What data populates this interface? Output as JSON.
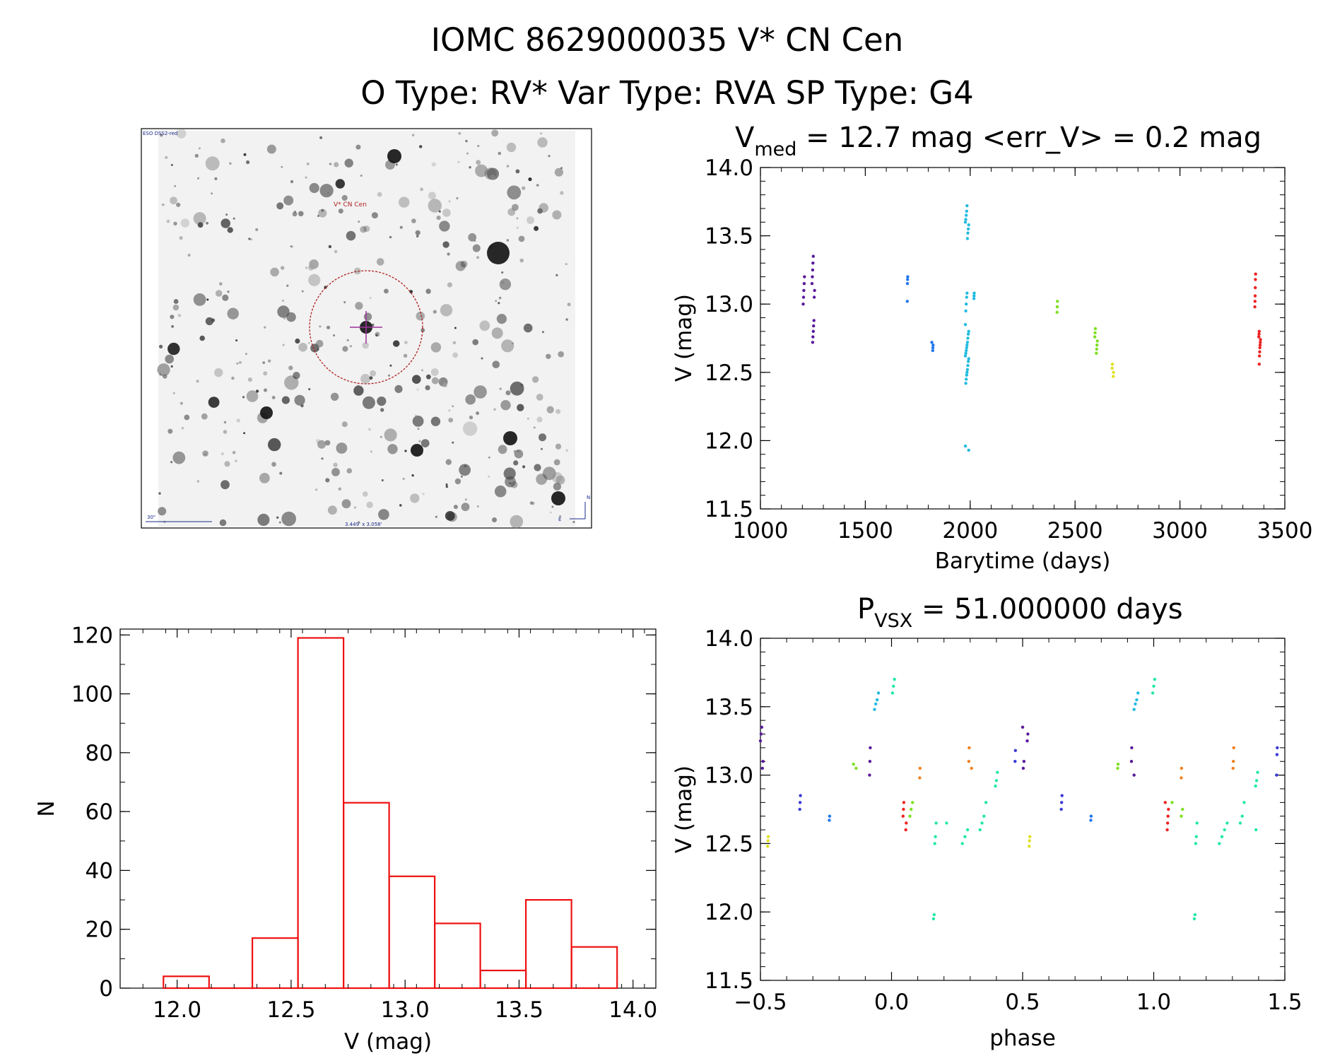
{
  "header": {
    "line1": "IOMC 8629000035    V* CN Cen",
    "line2": "O Type: RV*  Var Type: RVA  SP Type: G4"
  },
  "finder": {
    "survey_label": "ESO DSS2-red",
    "object_label": "V* CN Cen",
    "scale_label": "30\"",
    "fov_label": "3.449' x 3.058'",
    "north_label": "N",
    "east_label": "E",
    "circle_color": "#b02020",
    "cross_color": "#a0309a"
  },
  "colors": {
    "histogram": "#ee1111",
    "palette": [
      "#5a1a9c",
      "#3a3ad6",
      "#2277ee",
      "#22bbe0",
      "#22e8a8",
      "#7ee022",
      "#e0e022",
      "#f08020",
      "#ee2222"
    ]
  },
  "chart_data": [
    {
      "id": "lightcurve",
      "type": "scatter",
      "title_main": "V",
      "title_sub": "med",
      "title_rest": " = 12.7 mag <err_V> = 0.2 mag",
      "xlabel": "Barytime (days)",
      "ylabel": "V (mag)",
      "xlim": [
        1000,
        3500
      ],
      "ylim": [
        14.0,
        11.5
      ],
      "y_inverted": true,
      "xticks": [
        1000,
        1500,
        2000,
        2500,
        3000,
        3500
      ],
      "yticks": [
        "11.5",
        "12.0",
        "12.5",
        "13.0",
        "13.5",
        "14.0"
      ],
      "clusters": [
        {
          "x": 1210,
          "xspread": 6,
          "values": [
            13.0,
            13.05,
            13.1,
            13.15,
            13.2
          ]
        },
        {
          "x": 1252,
          "xspread": 6,
          "values": [
            12.72,
            12.76,
            12.8,
            12.84,
            12.88,
            13.05,
            13.1,
            13.15,
            13.2,
            13.25,
            13.3,
            13.35
          ]
        },
        {
          "x": 1700,
          "xspread": 3,
          "values": [
            13.02,
            13.15,
            13.18,
            13.2
          ]
        },
        {
          "x": 1820,
          "xspread": 3,
          "values": [
            12.66,
            12.68,
            12.7,
            12.72
          ]
        },
        {
          "x": 1985,
          "xspread": 8,
          "values": [
            11.93,
            11.96,
            12.42,
            12.45,
            12.48,
            12.5,
            12.52,
            12.55,
            12.58,
            12.6,
            12.62,
            12.64,
            12.66,
            12.68,
            12.7,
            12.72,
            12.75,
            12.78,
            12.8,
            12.85,
            12.95,
            13.0,
            13.05,
            13.08,
            13.48,
            13.52,
            13.55,
            13.58,
            13.6,
            13.62,
            13.65,
            13.68,
            13.72
          ]
        },
        {
          "x": 2020,
          "xspread": 3,
          "values": [
            13.04,
            13.06,
            13.08
          ]
        },
        {
          "x": 2415,
          "xspread": 3,
          "values": [
            12.94,
            12.98,
            13.02
          ]
        },
        {
          "x": 2600,
          "xspread": 6,
          "values": [
            12.64,
            12.67,
            12.7,
            12.73,
            12.76,
            12.79,
            12.82
          ]
        },
        {
          "x": 2680,
          "xspread": 3,
          "values": [
            12.47,
            12.5,
            12.53,
            12.56
          ]
        },
        {
          "x": 3360,
          "xspread": 3,
          "values": [
            12.98,
            13.02,
            13.06,
            13.12,
            13.18,
            13.22
          ]
        },
        {
          "x": 3380,
          "xspread": 4,
          "values": [
            12.56,
            12.62,
            12.65,
            12.68,
            12.7,
            12.72,
            12.74,
            12.76,
            12.78,
            12.8
          ]
        }
      ]
    },
    {
      "id": "histogram",
      "type": "bar",
      "xlabel": "V (mag)",
      "ylabel": "N",
      "xlim": [
        11.75,
        14.1
      ],
      "ylim": [
        0,
        122
      ],
      "xticks": [
        "12.0",
        "12.5",
        "13.0",
        "13.5",
        "14.0"
      ],
      "yticks": [
        "0",
        "20",
        "40",
        "60",
        "80",
        "100",
        "120"
      ],
      "bin_edges": [
        11.94,
        12.14,
        12.33,
        12.53,
        12.73,
        12.93,
        13.13,
        13.33,
        13.53,
        13.73
      ],
      "counts": [
        4,
        0,
        17,
        119,
        63,
        38,
        22,
        6,
        30,
        14
      ]
    },
    {
      "id": "phased",
      "type": "scatter",
      "title_main": "P",
      "title_sub": "VSX",
      "title_rest": " = 51.000000 days",
      "xlabel": "phase",
      "ylabel": "V (mag)",
      "xlim": [
        -0.5,
        1.5
      ],
      "ylim": [
        14.0,
        11.5
      ],
      "y_inverted": true,
      "xticks": [
        "−0.5",
        "0.0",
        "0.5",
        "1.0",
        "1.5"
      ],
      "yticks": [
        "11.5",
        "12.0",
        "12.5",
        "13.0",
        "13.5",
        "14.0"
      ],
      "clusters": [
        {
          "x": -0.49,
          "xspread": 0.01,
          "values": [
            13.25,
            13.3,
            13.35,
            13.05,
            13.1
          ]
        },
        {
          "x": -0.47,
          "xspread": 0.005,
          "values": [
            12.48,
            12.52,
            12.55
          ]
        },
        {
          "x": -0.35,
          "xspread": 0.005,
          "values": [
            12.75,
            12.8,
            12.85
          ]
        },
        {
          "x": -0.24,
          "xspread": 0.005,
          "values": [
            12.67,
            12.7
          ]
        },
        {
          "x": -0.14,
          "xspread": 0.005,
          "values": [
            13.05,
            13.08
          ]
        },
        {
          "x": -0.08,
          "xspread": 0.005,
          "values": [
            13.0,
            13.1,
            13.2
          ]
        },
        {
          "x": -0.06,
          "xspread": 0.02,
          "values": [
            13.48,
            13.52,
            13.55,
            13.6
          ]
        },
        {
          "x": 0.0,
          "xspread": 0.015,
          "values": [
            13.6,
            13.65,
            13.7
          ]
        },
        {
          "x": 0.05,
          "xspread": 0.006,
          "values": [
            12.6,
            12.65,
            12.7,
            12.75,
            12.8
          ]
        },
        {
          "x": 0.09,
          "xspread": 0.02,
          "values": [
            12.7,
            12.75,
            12.8
          ]
        },
        {
          "x": 0.11,
          "xspread": 0.005,
          "values": [
            12.98,
            13.05
          ]
        },
        {
          "x": 0.16,
          "xspread": 0.01,
          "values": [
            11.95,
            11.98,
            12.5,
            12.55,
            12.65
          ]
        },
        {
          "x": 0.25,
          "xspread": 0.04,
          "values": [
            12.5,
            12.55,
            12.6,
            12.65
          ]
        },
        {
          "x": 0.3,
          "xspread": 0.005,
          "values": [
            13.05,
            13.1,
            13.2
          ]
        },
        {
          "x": 0.36,
          "xspread": 0.03,
          "values": [
            12.6,
            12.65,
            12.7,
            12.8
          ]
        },
        {
          "x": 0.4,
          "xspread": 0.015,
          "values": [
            12.92,
            12.96,
            13.02
          ]
        },
        {
          "x": 0.47,
          "xspread": 0.005,
          "values": [
            13.1,
            13.18
          ]
        },
        {
          "x": 0.51,
          "xspread": 0.01,
          "values": [
            13.25,
            13.3,
            13.35,
            13.05,
            13.1
          ]
        },
        {
          "x": 0.53,
          "xspread": 0.005,
          "values": [
            12.48,
            12.52,
            12.55
          ]
        },
        {
          "x": 0.65,
          "xspread": 0.005,
          "values": [
            12.75,
            12.8,
            12.85
          ]
        },
        {
          "x": 0.76,
          "xspread": 0.005,
          "values": [
            12.67,
            12.7
          ]
        },
        {
          "x": 0.86,
          "xspread": 0.005,
          "values": [
            13.05,
            13.08
          ]
        },
        {
          "x": 0.92,
          "xspread": 0.005,
          "values": [
            13.0,
            13.1,
            13.2
          ]
        },
        {
          "x": 0.94,
          "xspread": 0.02,
          "values": [
            13.48,
            13.52,
            13.55,
            13.6
          ]
        },
        {
          "x": 1.0,
          "xspread": 0.015,
          "values": [
            13.6,
            13.65,
            13.7
          ]
        },
        {
          "x": 1.05,
          "xspread": 0.006,
          "values": [
            12.6,
            12.65,
            12.7,
            12.75,
            12.8
          ]
        },
        {
          "x": 1.09,
          "xspread": 0.02,
          "values": [
            12.7,
            12.75,
            12.8
          ]
        },
        {
          "x": 1.11,
          "xspread": 0.005,
          "values": [
            12.98,
            13.05
          ]
        },
        {
          "x": 1.16,
          "xspread": 0.01,
          "values": [
            11.95,
            11.98,
            12.5,
            12.55,
            12.65
          ]
        },
        {
          "x": 1.25,
          "xspread": 0.04,
          "values": [
            12.5,
            12.55,
            12.6,
            12.65
          ]
        },
        {
          "x": 1.3,
          "xspread": 0.005,
          "values": [
            13.05,
            13.1,
            13.2
          ]
        },
        {
          "x": 1.36,
          "xspread": 0.03,
          "values": [
            12.6,
            12.65,
            12.7,
            12.8
          ]
        },
        {
          "x": 1.4,
          "xspread": 0.015,
          "values": [
            12.92,
            12.96,
            13.02
          ]
        },
        {
          "x": 1.47,
          "xspread": 0.005,
          "values": [
            13.0,
            13.15,
            13.2
          ]
        }
      ]
    }
  ]
}
